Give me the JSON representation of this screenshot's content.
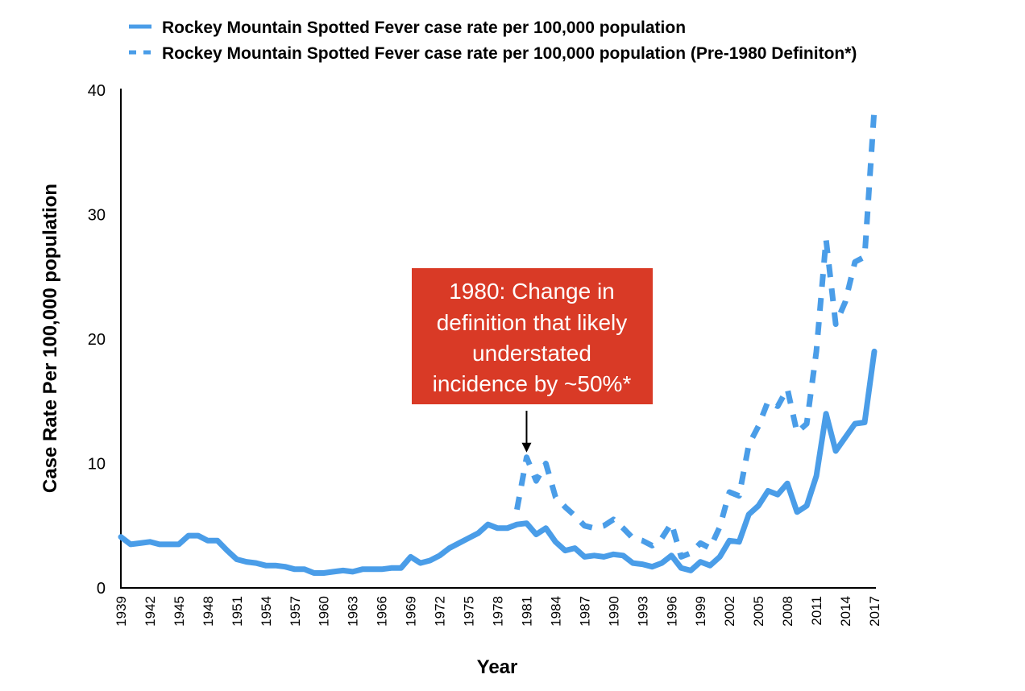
{
  "chart_data": {
    "type": "line",
    "title": "",
    "xlabel": "Year",
    "ylabel": "Case Rate Per 100,000 population",
    "ylim": [
      0,
      40
    ],
    "xlim": [
      1939,
      2017
    ],
    "y_ticks": [
      0,
      10,
      20,
      30,
      40
    ],
    "x_ticks": [
      1939,
      1942,
      1945,
      1948,
      1951,
      1954,
      1957,
      1960,
      1963,
      1966,
      1969,
      1972,
      1975,
      1978,
      1981,
      1984,
      1987,
      1990,
      1993,
      1996,
      1999,
      2002,
      2005,
      2008,
      2011,
      2014,
      2017
    ],
    "grid": false,
    "legend_position": "top",
    "colors": {
      "series": "#4a9de8",
      "callout_bg": "#d93a26",
      "callout_text": "#ffffff",
      "axis": "#000000"
    },
    "series": [
      {
        "name": "Rockey Mountain Spotted Fever case rate per 100,000 population",
        "style": "solid",
        "x": [
          1939,
          1940,
          1941,
          1942,
          1943,
          1944,
          1945,
          1946,
          1947,
          1948,
          1949,
          1950,
          1951,
          1952,
          1953,
          1954,
          1955,
          1956,
          1957,
          1958,
          1959,
          1960,
          1961,
          1962,
          1963,
          1964,
          1965,
          1966,
          1967,
          1968,
          1969,
          1970,
          1971,
          1972,
          1973,
          1974,
          1975,
          1976,
          1977,
          1978,
          1979,
          1980,
          1981,
          1982,
          1983,
          1984,
          1985,
          1986,
          1987,
          1988,
          1989,
          1990,
          1991,
          1992,
          1993,
          1994,
          1995,
          1996,
          1997,
          1998,
          1999,
          2000,
          2001,
          2002,
          2003,
          2004,
          2005,
          2006,
          2007,
          2008,
          2009,
          2010,
          2011,
          2012,
          2013,
          2014,
          2015,
          2016,
          2017
        ],
        "values": [
          4.1,
          3.5,
          3.6,
          3.7,
          3.5,
          3.5,
          3.5,
          4.2,
          4.2,
          3.8,
          3.8,
          3.0,
          2.3,
          2.1,
          2.0,
          1.8,
          1.8,
          1.7,
          1.5,
          1.5,
          1.2,
          1.2,
          1.3,
          1.4,
          1.3,
          1.5,
          1.5,
          1.5,
          1.6,
          1.6,
          2.5,
          2.0,
          2.2,
          2.6,
          3.2,
          3.6,
          4.0,
          4.4,
          5.1,
          4.8,
          4.8,
          5.1,
          5.2,
          4.3,
          4.8,
          3.7,
          3.0,
          3.2,
          2.5,
          2.6,
          2.5,
          2.7,
          2.6,
          2.0,
          1.9,
          1.7,
          2.0,
          2.6,
          1.6,
          1.4,
          2.1,
          1.8,
          2.5,
          3.8,
          3.7,
          5.9,
          6.6,
          7.8,
          7.5,
          8.4,
          6.1,
          6.6,
          9.0,
          14.0,
          11.0,
          12.1,
          13.2,
          13.3,
          19.0
        ]
      },
      {
        "name": "Rockey Mountain Spotted Fever case rate per 100,000 population (Pre-1980 Definiton*)",
        "style": "dashed",
        "x": [
          1980,
          1981,
          1982,
          1983,
          1984,
          1985,
          1986,
          1987,
          1988,
          1989,
          1990,
          1991,
          1992,
          1993,
          1994,
          1995,
          1996,
          1997,
          1998,
          1999,
          2000,
          2001,
          2002,
          2003,
          2004,
          2005,
          2006,
          2007,
          2008,
          2009,
          2010,
          2011,
          2012,
          2013,
          2014,
          2015,
          2016,
          2017
        ],
        "values": [
          6.3,
          10.5,
          8.6,
          10.0,
          7.3,
          6.5,
          5.8,
          5.0,
          4.8,
          5.0,
          5.5,
          4.8,
          4.0,
          3.8,
          3.4,
          4.0,
          5.2,
          2.5,
          2.8,
          3.6,
          3.2,
          4.9,
          7.7,
          7.4,
          11.5,
          13.0,
          15.0,
          14.6,
          16.0,
          12.5,
          13.2,
          19.0,
          28.0,
          21.2,
          23.0,
          26.2,
          26.6,
          38.5
        ]
      }
    ],
    "annotation": {
      "lines": [
        "1980: Change in",
        "definition that likely",
        "understated",
        "incidence by ~50%*"
      ],
      "arrow_to_x": 1981,
      "arrow_to_y": 10.5
    }
  }
}
